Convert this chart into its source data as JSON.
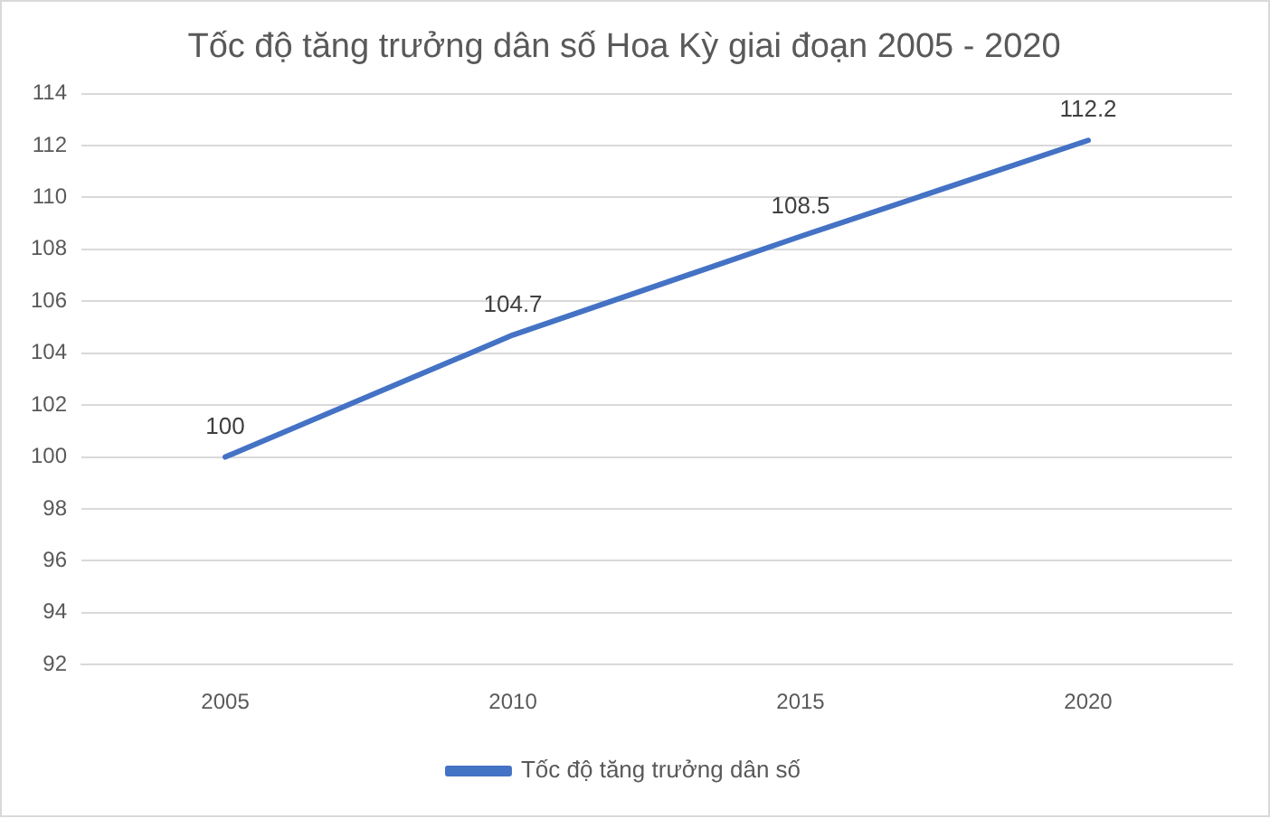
{
  "chart_data": {
    "type": "line",
    "title": "Tốc độ tăng trưởng dân số Hoa Kỳ giai đoạn 2005 - 2020",
    "categories": [
      "2005",
      "2010",
      "2015",
      "2020"
    ],
    "series": [
      {
        "name": "Tốc độ tăng trưởng dân số",
        "color": "#4472c4",
        "values": [
          100,
          104.7,
          108.5,
          112.2
        ]
      }
    ],
    "ylim": [
      92,
      114
    ],
    "yticks": [
      92,
      94,
      96,
      98,
      100,
      102,
      104,
      106,
      108,
      110,
      112,
      114
    ],
    "grid": "y",
    "legend": "bottom",
    "data_labels": true,
    "marker": "none",
    "line_style": "solid"
  }
}
